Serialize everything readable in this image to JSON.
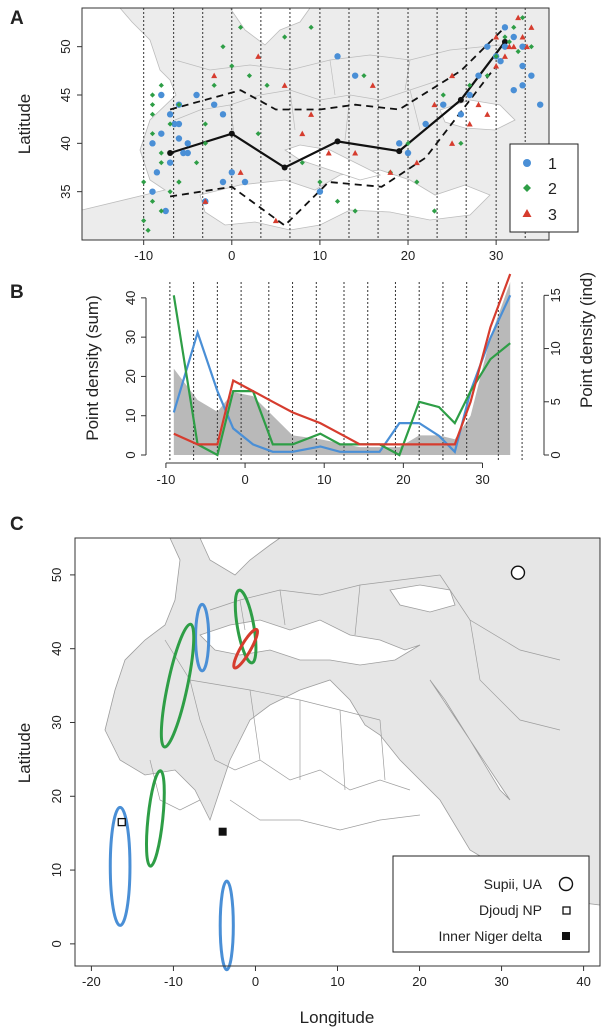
{
  "chart_data": [
    {
      "panel": "A",
      "type": "scatter",
      "ylabel": "Latitude",
      "xlim": [
        -17,
        36
      ],
      "ylim": [
        30,
        54
      ],
      "x_ticks": [
        "-10",
        "0",
        "10",
        "20",
        "30"
      ],
      "y_ticks": [
        "35",
        "40",
        "45",
        "50"
      ],
      "legend": {
        "position": "bottom-right",
        "entries": [
          "1",
          "2",
          "3"
        ]
      },
      "bin_boundaries": [
        -10,
        -6.6,
        -3.3,
        0,
        3.3,
        6.6,
        10,
        13.3,
        16.6,
        20,
        23.3,
        26.6,
        30,
        33.3
      ],
      "mean_route": {
        "x": [
          -7,
          0,
          6,
          12,
          19,
          26,
          31
        ],
        "y": [
          39,
          41,
          37.5,
          40.2,
          39.2,
          44.5,
          50.5
        ]
      },
      "upper_bound": {
        "x": [
          -7,
          1,
          5,
          10,
          14,
          19,
          26,
          31
        ],
        "y": [
          43.5,
          45.5,
          43.5,
          43.5,
          44,
          43.5,
          47.5,
          52
        ]
      },
      "lower_bound": {
        "x": [
          -7,
          0,
          6,
          11,
          17,
          22,
          30
        ],
        "y": [
          34.5,
          35.5,
          31.5,
          36,
          35.5,
          38.5,
          48
        ]
      },
      "series": [
        {
          "name": "1",
          "color": "#4a8fd6",
          "marker": "circle",
          "x": [
            -8,
            -7,
            -6.5,
            -6,
            -5,
            -5.5,
            -7,
            -8.5,
            -9,
            -6,
            -4,
            -2,
            -1,
            0,
            1.5,
            -9,
            -7.5,
            -3,
            -8,
            -6,
            -5,
            20,
            22,
            24,
            26,
            28,
            30,
            31,
            32,
            33,
            34,
            30.5,
            29,
            31,
            33,
            10,
            -1,
            19,
            27,
            32,
            33,
            35,
            14,
            12
          ],
          "y": [
            41,
            43,
            42,
            40.5,
            40,
            39,
            38,
            37,
            40,
            44,
            45,
            44,
            43,
            37,
            36,
            35,
            33,
            34,
            45,
            42,
            39,
            39,
            42,
            44,
            43,
            47,
            49,
            50,
            51,
            48,
            47,
            48.5,
            50,
            52,
            50,
            35,
            36,
            40,
            45,
            45.5,
            46,
            44,
            47,
            49
          ]
        },
        {
          "name": "2",
          "color": "#2e9e46",
          "marker": "diamond",
          "x": [
            -9,
            -9,
            -8,
            -7,
            -6,
            -9,
            -10,
            -9.5,
            -8,
            -7,
            -4,
            -3,
            -2,
            0,
            1,
            -9,
            -10,
            -8,
            -6,
            -3,
            2,
            4,
            8,
            10,
            12,
            15,
            21,
            23,
            26,
            29,
            30,
            31,
            32,
            33,
            34,
            31.5,
            32.5,
            14,
            18,
            20,
            24,
            27,
            -1,
            6,
            9,
            3,
            -9,
            -8,
            -6
          ],
          "y": [
            43,
            41,
            39,
            42,
            36,
            34,
            32,
            31,
            33,
            35,
            38,
            42,
            46,
            48,
            52,
            44,
            36,
            38,
            44,
            40,
            47,
            46,
            38,
            36,
            34,
            47,
            36,
            33,
            40,
            47,
            49,
            51,
            52,
            53,
            50,
            50.5,
            49.5,
            33,
            37,
            40,
            45,
            46,
            50,
            51,
            52,
            41,
            45,
            46,
            36
          ]
        },
        {
          "name": "3",
          "color": "#d63c2e",
          "marker": "triangle",
          "x": [
            3,
            6,
            9,
            11,
            14,
            18,
            23,
            25,
            28,
            30,
            31,
            32,
            33,
            34,
            30,
            32.5,
            -2,
            1,
            5,
            21,
            25,
            29,
            31.5,
            33.5,
            -3,
            8,
            16,
            27
          ],
          "y": [
            49,
            46,
            43,
            39,
            39,
            37,
            44,
            47,
            44,
            48,
            49,
            50,
            51,
            52,
            51,
            53,
            47,
            37,
            32,
            38,
            40,
            43,
            50,
            50,
            34,
            41,
            46,
            42
          ]
        }
      ]
    },
    {
      "panel": "B",
      "type": "line",
      "ylabel": "Point density (sum)",
      "ylabel_right": "Point density (ind)",
      "xlim": [
        -11,
        36
      ],
      "ylim_left": [
        0,
        42
      ],
      "ylim_right": [
        0,
        15.5
      ],
      "x_ticks": [
        "-10",
        "0",
        "10",
        "20",
        "30"
      ],
      "y_ticks_left": [
        "0",
        "10",
        "20",
        "30",
        "40"
      ],
      "y_ticks_right": [
        "0",
        "5",
        "10",
        "15"
      ],
      "bin_boundaries": [
        -9.5,
        -6.5,
        -3.5,
        -0.5,
        3,
        6,
        9,
        12.5,
        15.5,
        19,
        22,
        25,
        28,
        32,
        35
      ],
      "x": [
        -9,
        -6,
        -3.5,
        -1.5,
        1,
        3.5,
        6,
        9.5,
        12,
        14.5,
        17,
        19.5,
        22,
        24.5,
        26.5,
        28.5,
        31,
        33.5
      ],
      "sum_area": [
        22,
        14,
        11,
        16,
        15,
        10,
        5,
        4,
        3,
        2,
        2,
        2,
        5,
        5,
        4,
        10,
        30,
        44
      ],
      "series": [
        {
          "name": "1",
          "color": "#4a8fd6",
          "values": [
            4,
            11.5,
            6,
            2.5,
            1,
            0.3,
            0.3,
            0.8,
            0.3,
            0.3,
            0.3,
            3,
            3,
            1.8,
            0.3,
            6,
            11,
            15
          ]
        },
        {
          "name": "2",
          "color": "#2e9e46",
          "values": [
            15,
            1,
            0,
            6,
            6,
            1,
            1,
            2,
            1,
            1,
            1,
            0,
            5,
            4.5,
            3,
            6,
            9,
            10.5
          ]
        },
        {
          "name": "3",
          "color": "#d63c2e",
          "values": [
            2,
            1,
            1,
            7,
            6,
            5,
            4,
            3,
            2,
            1,
            1,
            1,
            1,
            1,
            1,
            5,
            12,
            17
          ]
        }
      ]
    },
    {
      "panel": "C",
      "type": "scatter",
      "xlabel": "Longitude",
      "ylabel": "Latitude",
      "xlim": [
        -22,
        42
      ],
      "ylim": [
        -3,
        55
      ],
      "x_ticks": [
        "-20",
        "-10",
        "0",
        "10",
        "20",
        "30",
        "40"
      ],
      "y_ticks": [
        "0",
        "10",
        "20",
        "30",
        "40",
        "50"
      ],
      "ellipses": [
        {
          "color": "#4a8fd6",
          "cx": -6.5,
          "cy": 41.5,
          "rx": 0.8,
          "ry": 4.5,
          "angle": 0
        },
        {
          "color": "#2e9e46",
          "cx": -1.2,
          "cy": 43,
          "rx": 1,
          "ry": 5,
          "angle": -10
        },
        {
          "color": "#d63c2e",
          "cx": -1.2,
          "cy": 40,
          "rx": 0.6,
          "ry": 3,
          "angle": 30
        },
        {
          "color": "#2e9e46",
          "cx": -9.5,
          "cy": 35,
          "rx": 1.2,
          "ry": 8.5,
          "angle": 12
        },
        {
          "color": "#2e9e46",
          "cx": -12.2,
          "cy": 17,
          "rx": 0.9,
          "ry": 6.5,
          "angle": 6
        },
        {
          "color": "#4a8fd6",
          "cx": -16.5,
          "cy": 10.5,
          "rx": 1.2,
          "ry": 8,
          "angle": 0
        },
        {
          "color": "#4a8fd6",
          "cx": -3.5,
          "cy": 2.5,
          "rx": 0.8,
          "ry": 6,
          "angle": 0
        }
      ],
      "sites": [
        {
          "name": "Supii, UA",
          "marker": "open-circle",
          "x": 32,
          "y": 50.3
        },
        {
          "name": "Djoudj NP",
          "marker": "open-square",
          "x": -16.3,
          "y": 16.5
        },
        {
          "name": "Inner Niger delta",
          "marker": "filled-square",
          "x": -4,
          "y": 15.2
        }
      ],
      "legend": {
        "position": "bottom-right",
        "entries": [
          "Supii, UA",
          "Djoudj NP",
          "Inner Niger delta"
        ]
      }
    }
  ]
}
